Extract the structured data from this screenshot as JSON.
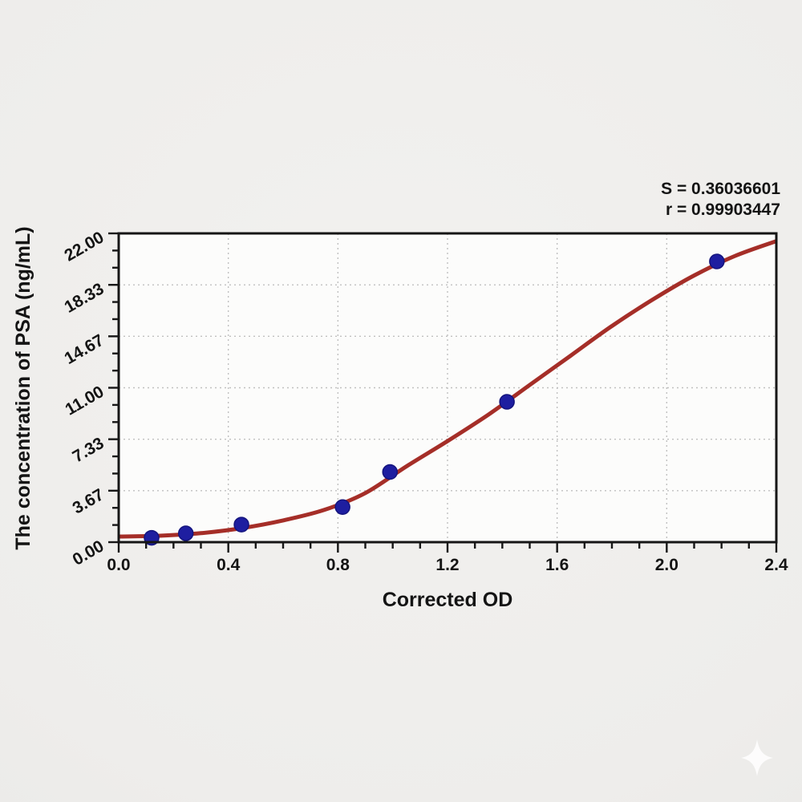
{
  "figure": {
    "background_color": "#eeedeb",
    "plot_background_color": "#fcfcfb",
    "axis_color": "#161616"
  },
  "stats": {
    "s_label": "S = 0.36036601",
    "r_label": "r = 0.99903447"
  },
  "chart_data": {
    "type": "scatter",
    "title": "",
    "xlabel": "Corrected OD",
    "ylabel": "The concentration of PSA (ng/mL)",
    "xlim": [
      0,
      2.4
    ],
    "ylim": [
      0,
      22
    ],
    "x_ticks": {
      "values": [
        0,
        0.4,
        0.8,
        1.2,
        1.6,
        2.0,
        2.4
      ],
      "labels": [
        "0.0",
        "0.4",
        "0.8",
        "1.2",
        "1.6",
        "2.0",
        "2.4"
      ],
      "minor_step": 0.1
    },
    "y_ticks": {
      "values": [
        0,
        3.6667,
        7.3333,
        11,
        14.6667,
        18.3333,
        22
      ],
      "labels": [
        "0.00",
        "3.67",
        "7.33",
        "11.00",
        "14.67",
        "18.33",
        "22.00"
      ],
      "minor_divisions": 3
    },
    "grid": {
      "show": true,
      "style": "dotted",
      "color": "#c0c0c0",
      "on": "major"
    },
    "legend": "none",
    "series": [
      {
        "name": "standard-points",
        "type": "scatter",
        "color": "#1e1ea0",
        "edge_color": "#14147d",
        "x": [
          0.12,
          0.245,
          0.448,
          0.817,
          0.99,
          1.417,
          2.183
        ],
        "y": [
          0.31,
          0.63,
          1.25,
          2.5,
          5.0,
          10.0,
          20.0
        ]
      },
      {
        "name": "fitted-4pl-curve",
        "type": "line",
        "color": "#a52e28",
        "x": [
          0.0,
          0.15,
          0.3,
          0.45,
          0.6,
          0.75,
          0.9,
          1.05,
          1.2,
          1.35,
          1.5,
          1.65,
          1.8,
          1.95,
          2.1,
          2.25,
          2.4
        ],
        "y": [
          0.4,
          0.46,
          0.64,
          1.0,
          1.55,
          2.3,
          3.5,
          5.4,
          7.2,
          9.1,
          11.2,
          13.3,
          15.4,
          17.3,
          19.0,
          20.4,
          21.45
        ]
      }
    ],
    "annotations": [
      "S = 0.36036601",
      "r = 0.99903447"
    ]
  },
  "watermark": {
    "icon": "four-point-star",
    "color": "#ffffff"
  }
}
